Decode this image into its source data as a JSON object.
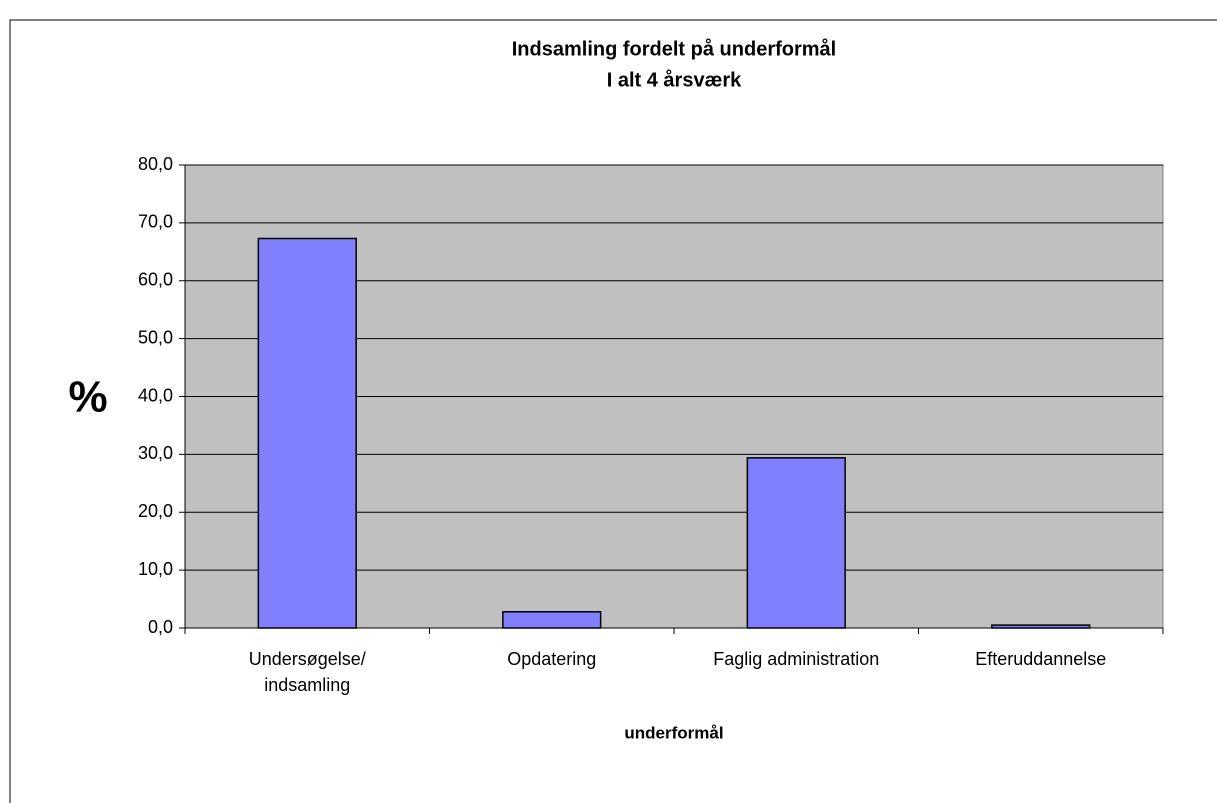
{
  "chart_data": {
    "type": "bar",
    "title": "Indsamling fordelt på underformål",
    "subtitle": "I alt 4 årsværk",
    "y_label": "%",
    "x_label": "underformål",
    "categories": [
      "Undersøgelse/\nindsamling",
      "Opdatering",
      "Faglig administration",
      "Efteruddannelse"
    ],
    "values": [
      67.3,
      2.8,
      29.4,
      0.5
    ],
    "color": "#8080ff",
    "ylim": [
      0,
      80
    ],
    "yticks": [
      {
        "value": 0,
        "label": "0,0"
      },
      {
        "value": 10,
        "label": "10,0"
      },
      {
        "value": 20,
        "label": "20,0"
      },
      {
        "value": 30,
        "label": "30,0"
      },
      {
        "value": 40,
        "label": "40,0"
      },
      {
        "value": 50,
        "label": "50,0"
      },
      {
        "value": 60,
        "label": "60,0"
      },
      {
        "value": 70,
        "label": "70,0"
      },
      {
        "value": 80,
        "label": "80,0"
      }
    ],
    "grid": true
  }
}
